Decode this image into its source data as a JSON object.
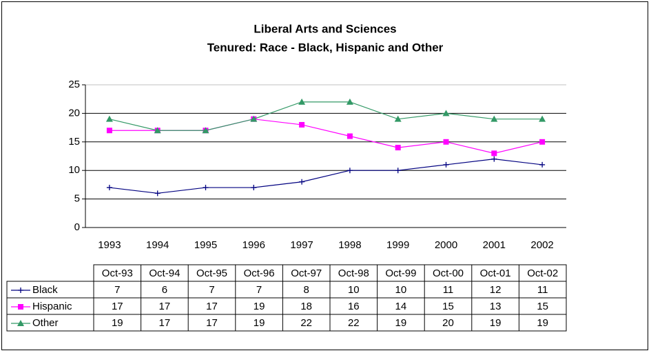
{
  "chart_data": {
    "type": "line",
    "title": "Liberal Arts and Sciences",
    "subtitle": "Tenured: Race - Black, Hispanic and Other",
    "categories": [
      "1993",
      "1994",
      "1995",
      "1996",
      "1997",
      "1998",
      "1999",
      "2000",
      "2001",
      "2002"
    ],
    "table_columns": [
      "Oct-93",
      "Oct-94",
      "Oct-95",
      "Oct-96",
      "Oct-97",
      "Oct-98",
      "Oct-99",
      "Oct-00",
      "Oct-01",
      "Oct-02"
    ],
    "series": [
      {
        "name": "Black",
        "color": "#000080",
        "marker": "plus",
        "values": [
          7,
          6,
          7,
          7,
          8,
          10,
          10,
          11,
          12,
          11
        ]
      },
      {
        "name": "Hispanic",
        "color": "#ff00ff",
        "marker": "square",
        "values": [
          17,
          17,
          17,
          19,
          18,
          16,
          14,
          15,
          13,
          15
        ]
      },
      {
        "name": "Other",
        "color": "#339966",
        "marker": "triangle",
        "values": [
          19,
          17,
          17,
          19,
          22,
          22,
          19,
          20,
          19,
          19
        ]
      }
    ],
    "ylim": [
      0,
      25
    ],
    "yticks": [
      0,
      5,
      10,
      15,
      20,
      25
    ],
    "grid": true
  }
}
